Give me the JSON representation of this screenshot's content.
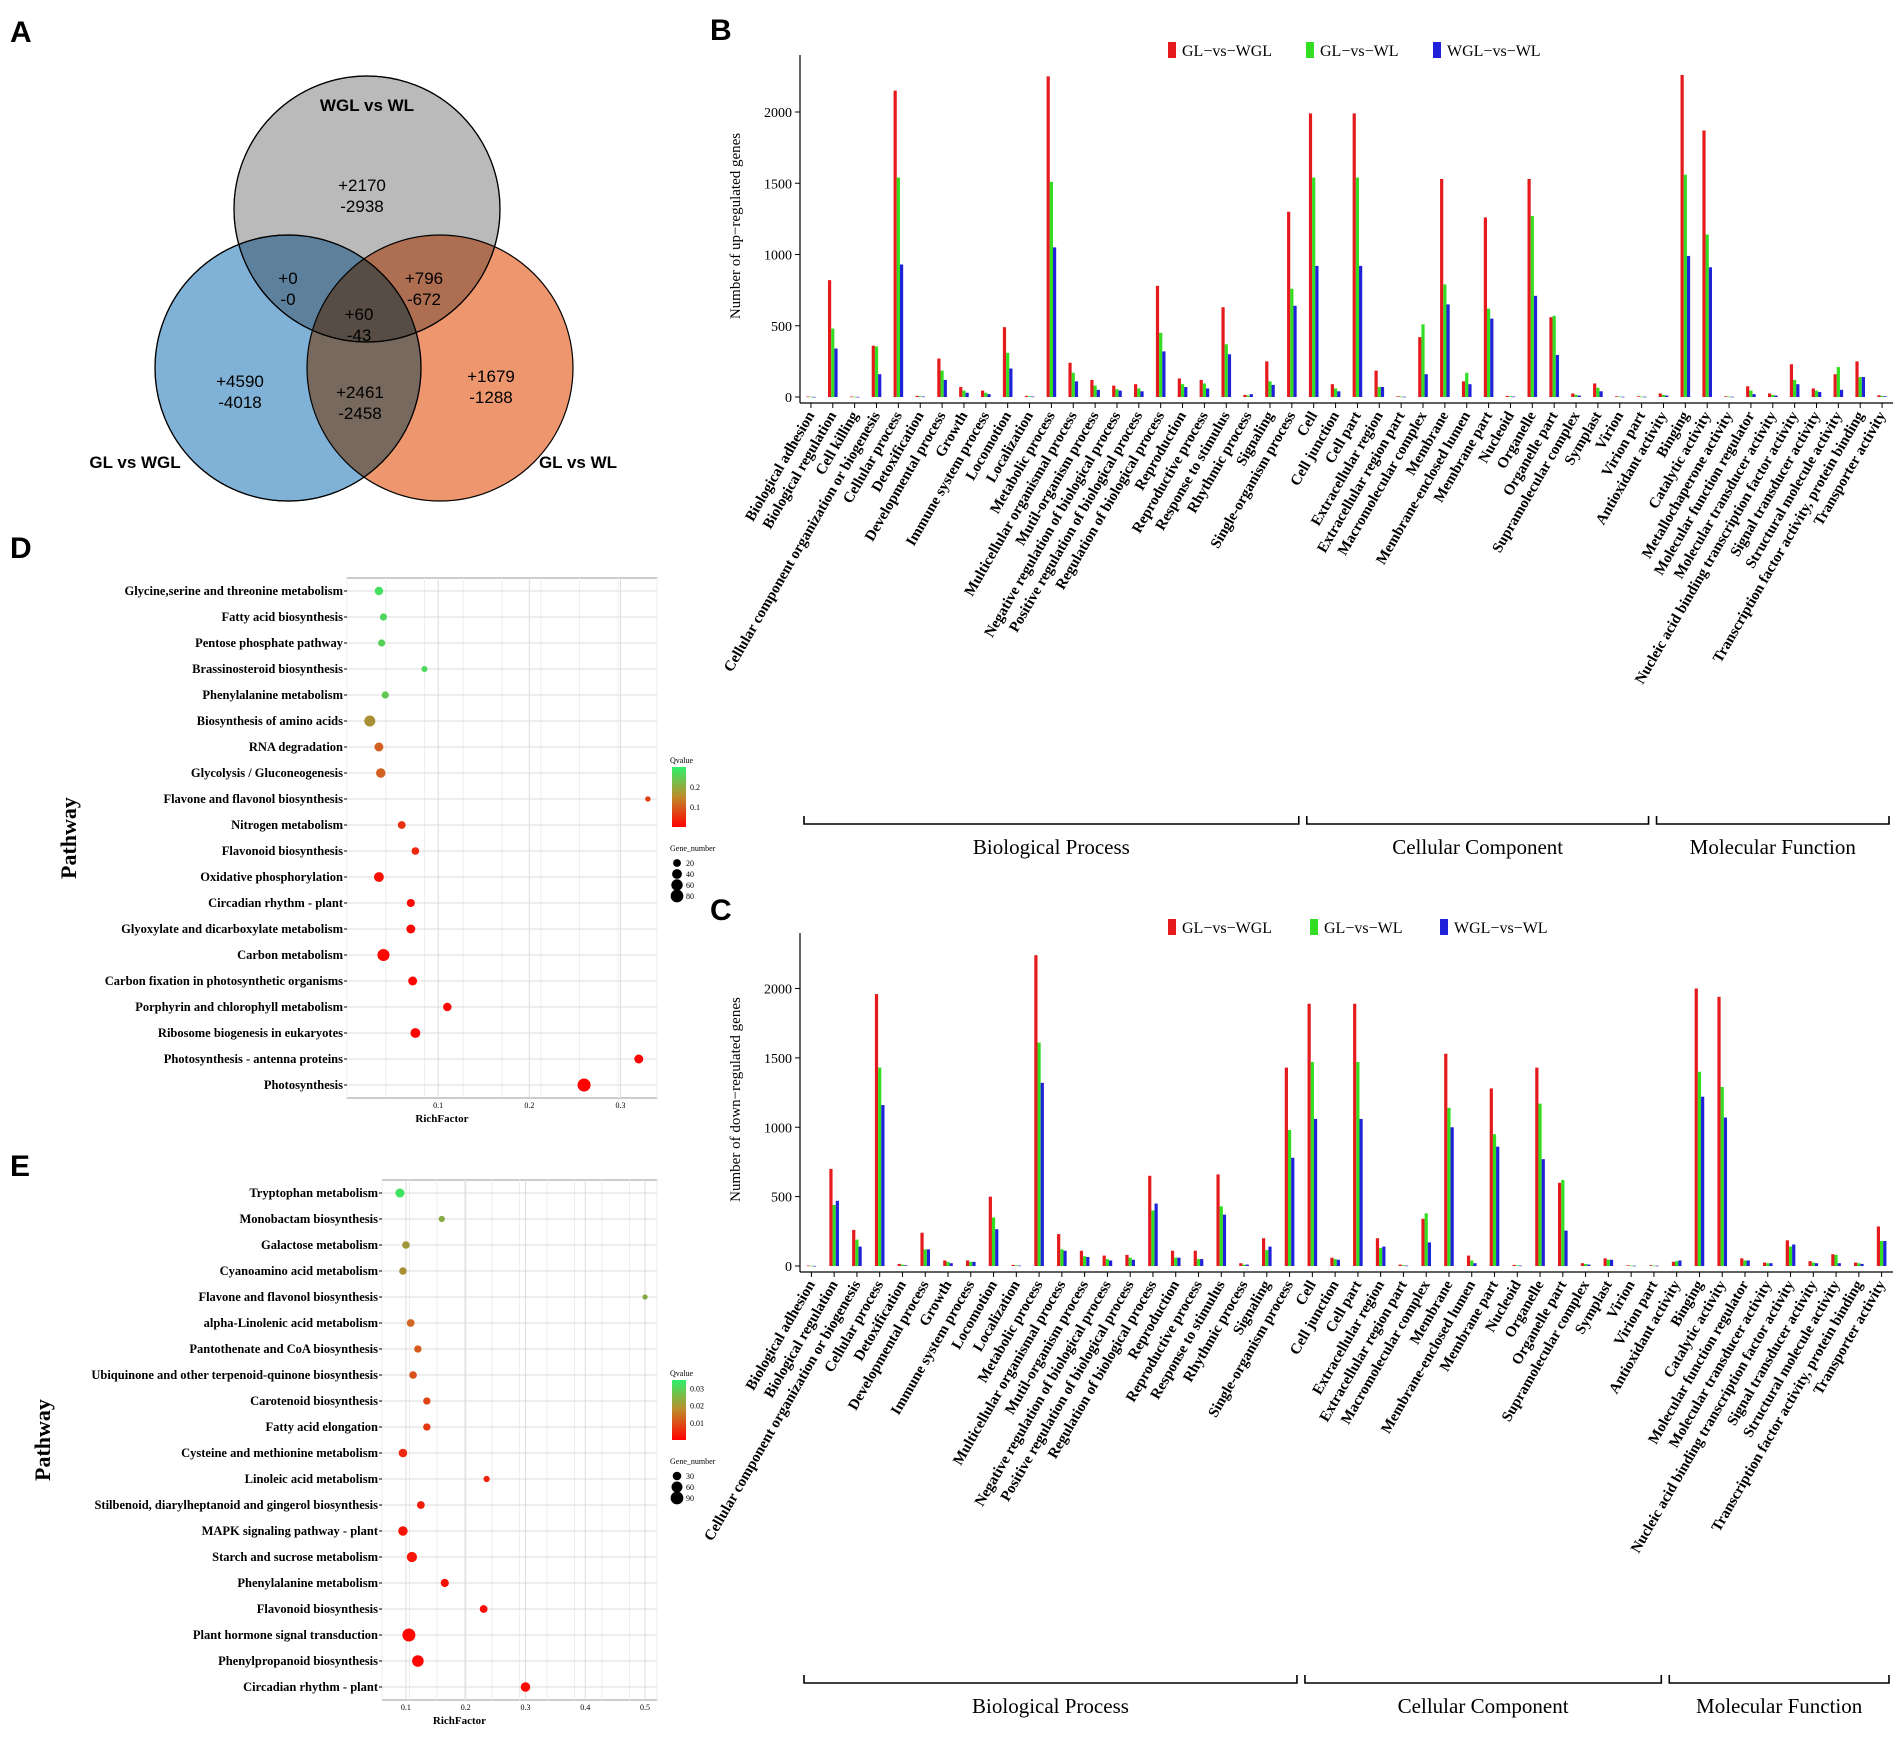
{
  "panel_labels": {
    "A": "A",
    "B": "B",
    "C": "C",
    "D": "D",
    "E": "E"
  },
  "venn": {
    "sets": {
      "top": "WGL vs WL",
      "left": "GL vs WGL",
      "right": "GL vs WL"
    },
    "regions": {
      "top_only": [
        "+2170",
        "-2938"
      ],
      "left_only": [
        "+4590",
        "-4018"
      ],
      "right_only": [
        "+1679",
        "-1288"
      ],
      "top_left": [
        "+0",
        "-0"
      ],
      "top_right": [
        "+796",
        "-672"
      ],
      "left_right": [
        "+2461",
        "-2458"
      ],
      "center": [
        "+60",
        "-43"
      ]
    },
    "colors": {
      "top": "#b3b3b3",
      "left": "#6aa3cf",
      "right": "#ec8c5f"
    }
  },
  "chart_data": [
    {
      "id": "B",
      "type": "bar",
      "ylabel": "Number of up−regulated genes",
      "ylim": [
        0,
        2400
      ],
      "yticks": [
        0,
        500,
        1000,
        1500,
        2000
      ],
      "legend": [
        "GL−vs−WGL",
        "GL−vs−WL",
        "WGL−vs−WL"
      ],
      "colors": [
        "#e41a1c",
        "#33dd22",
        "#1f22d8"
      ],
      "categories": [
        "Biological adhesion",
        "Biological regulation",
        "Cell killing",
        "Cellular component organization or biogenesis",
        "Cellular process",
        "Detoxification",
        "Developmental process",
        "Growth",
        "Immune system process",
        "Locomotion",
        "Localization",
        "Metabolic process",
        "Multicellular organismal process",
        "Mutil-organism process",
        "Negative regulation of biological process",
        "Positive regulation of biological process",
        "Regulation of biological process",
        "Reproduction",
        "Reproductive process",
        "Response to stimulus",
        "Rhythmic process",
        "Signaling",
        "Single-organism process",
        "Cell",
        "Cell junction",
        "Cell part",
        "Extracellular region",
        "Extracellular region part",
        "Macromolecular complex",
        "Membrane",
        "Membrane-enclosed lumen",
        "Membrane part",
        "Nucleoid",
        "Organelle",
        "Organelle part",
        "Supramolecular complex",
        "Symplast",
        "Virion",
        "Virion part",
        "Antioxidant activity",
        "Binging",
        "Catalytic activity",
        "Metallochaperone activity",
        "Molecular function regulator",
        "Molecular transducer activity",
        "Nucleic acid binding transcription factor activity",
        "Signal transducer activity",
        "Structural molecule activity",
        "Transcription factor activity, protein binding",
        "Transporter activity"
      ],
      "series": [
        {
          "name": "GL−vs−WGL",
          "values": [
            3,
            820,
            3,
            360,
            2150,
            8,
            270,
            70,
            45,
            490,
            8,
            2250,
            240,
            120,
            80,
            90,
            780,
            130,
            120,
            630,
            15,
            250,
            1300,
            1990,
            90,
            1990,
            185,
            5,
            420,
            1530,
            110,
            1260,
            8,
            1530,
            560,
            25,
            95,
            5,
            5,
            25,
            2260,
            1870,
            5,
            75,
            25,
            230,
            60,
            160,
            250,
            12
          ]
        },
        {
          "name": "GL−vs−WL",
          "values": [
            2,
            480,
            2,
            355,
            1540,
            5,
            185,
            45,
            30,
            310,
            5,
            1510,
            170,
            80,
            55,
            60,
            450,
            90,
            95,
            370,
            10,
            110,
            760,
            1540,
            60,
            1540,
            70,
            3,
            510,
            790,
            170,
            620,
            5,
            1270,
            570,
            15,
            65,
            3,
            3,
            15,
            1560,
            1140,
            3,
            45,
            15,
            120,
            45,
            210,
            140,
            8
          ]
        },
        {
          "name": "WGL−vs−WL",
          "values": [
            1,
            340,
            1,
            160,
            930,
            3,
            120,
            30,
            20,
            200,
            3,
            1050,
            110,
            50,
            45,
            40,
            320,
            70,
            60,
            300,
            20,
            85,
            640,
            920,
            40,
            920,
            70,
            2,
            160,
            650,
            90,
            550,
            3,
            710,
            295,
            10,
            40,
            2,
            2,
            10,
            990,
            910,
            2,
            20,
            10,
            90,
            35,
            50,
            140,
            5
          ]
        }
      ],
      "groups": [
        {
          "label": "Biological Process",
          "from": 0,
          "to": 22
        },
        {
          "label": "Cellular Component",
          "from": 23,
          "to": 38
        },
        {
          "label": "Molecular Function",
          "from": 39,
          "to": 49
        }
      ]
    },
    {
      "id": "C",
      "type": "bar",
      "ylabel": "Number of down−regulated genes",
      "ylim": [
        0,
        2400
      ],
      "yticks": [
        0,
        500,
        1000,
        1500,
        2000
      ],
      "legend": [
        "GL−vs−WGL",
        "GL−vs−WL",
        "WGL−vs−WL"
      ],
      "colors": [
        "#e41a1c",
        "#33dd22",
        "#1f22d8"
      ],
      "categories": [
        "Biological adhesion",
        "Biological regulation",
        "Cellular component organization or biogenesis",
        "Cellular process",
        "Detoxification",
        "Developmental process",
        "Growth",
        "Immune system process",
        "Locomotion",
        "Localization",
        "Metabolic process",
        "Multicellular organismal process",
        "Mutil-organism process",
        "Negative regulation of biological process",
        "Positive regulation of biological process",
        "Regulation of biological process",
        "Reproduction",
        "Reproductive process",
        "Response to stimulus",
        "Rhythmic process",
        "Signaling",
        "Single-organism process",
        "Cell",
        "Cell junction",
        "Cell part",
        "Extracellular region",
        "Extracellular region part",
        "Macromolecular complex",
        "Membrane",
        "Membrane-enclosed lumen",
        "Membrane part",
        "Nucleoid",
        "Organelle",
        "Organelle part",
        "Supramolecular complex",
        "Symplast",
        "Virion",
        "Virion part",
        "Antioxidant activity",
        "Binging",
        "Catalytic activity",
        "Molecular function regulator",
        "Molecular transducer activity",
        "Nucleic acid binding transcription factor activity",
        "Signal transducer activity",
        "Structural molecule activity",
        "Transcription factor activity, protein binding",
        "Transporter activity"
      ],
      "series": [
        {
          "name": "GL−vs−WGL",
          "values": [
            3,
            700,
            260,
            1960,
            15,
            240,
            40,
            40,
            500,
            8,
            2240,
            230,
            110,
            75,
            80,
            650,
            110,
            110,
            660,
            20,
            200,
            1430,
            1890,
            60,
            1890,
            200,
            10,
            340,
            1530,
            75,
            1280,
            8,
            1430,
            600,
            20,
            55,
            5,
            5,
            30,
            2000,
            1940,
            55,
            25,
            185,
            35,
            85,
            25,
            285
          ]
        },
        {
          "name": "GL−vs−WL",
          "values": [
            2,
            440,
            190,
            1430,
            10,
            120,
            30,
            30,
            350,
            5,
            1610,
            120,
            70,
            50,
            60,
            400,
            60,
            50,
            430,
            10,
            115,
            980,
            1470,
            50,
            1470,
            130,
            5,
            380,
            1140,
            40,
            950,
            5,
            1170,
            620,
            15,
            45,
            3,
            3,
            35,
            1400,
            1290,
            40,
            20,
            140,
            25,
            80,
            20,
            180
          ]
        },
        {
          "name": "WGL−vs−WL",
          "values": [
            1,
            470,
            140,
            1160,
            5,
            120,
            20,
            30,
            265,
            3,
            1320,
            110,
            65,
            40,
            45,
            450,
            60,
            50,
            370,
            10,
            140,
            780,
            1060,
            45,
            1060,
            140,
            3,
            170,
            1000,
            20,
            860,
            3,
            770,
            255,
            10,
            45,
            2,
            2,
            40,
            1220,
            1070,
            40,
            20,
            155,
            20,
            20,
            15,
            180
          ]
        }
      ],
      "groups": [
        {
          "label": "Biological Process",
          "from": 0,
          "to": 21
        },
        {
          "label": "Cellular Component",
          "from": 22,
          "to": 37
        },
        {
          "label": "Molecular Function",
          "from": 38,
          "to": 47
        }
      ]
    },
    {
      "id": "D",
      "type": "scatter",
      "ylabel": "Pathway",
      "xlabel": "RichFactor",
      "xlim": [
        0.0,
        0.34
      ],
      "xticks": [
        0.1,
        0.2,
        0.3
      ],
      "legend_titles": {
        "color": "Qvalue",
        "size": "Gene_number"
      },
      "color_ticks": [
        0.2,
        0.1
      ],
      "size_ticks": [
        20,
        40,
        60,
        80
      ],
      "qrange": [
        0.0,
        0.3
      ],
      "points": [
        {
          "pathway": "Glycine,serine and threonine metabolism",
          "rich": 0.035,
          "q": 0.28,
          "n": 25
        },
        {
          "pathway": "Fatty acid biosynthesis",
          "rich": 0.04,
          "q": 0.27,
          "n": 15
        },
        {
          "pathway": "Pentose phosphate pathway",
          "rich": 0.038,
          "q": 0.26,
          "n": 15
        },
        {
          "pathway": "Brassinosteroid biosynthesis",
          "rich": 0.085,
          "q": 0.27,
          "n": 8
        },
        {
          "pathway": "Phenylalanine metabolism",
          "rich": 0.042,
          "q": 0.25,
          "n": 15
        },
        {
          "pathway": "Biosynthesis of amino acids",
          "rich": 0.025,
          "q": 0.18,
          "n": 55
        },
        {
          "pathway": "RNA degradation",
          "rich": 0.035,
          "q": 0.12,
          "n": 30
        },
        {
          "pathway": "Glycolysis / Gluconeogenesis",
          "rich": 0.037,
          "q": 0.12,
          "n": 35
        },
        {
          "pathway": "Flavone and flavonol biosynthesis",
          "rich": 0.33,
          "q": 0.08,
          "n": 5
        },
        {
          "pathway": "Nitrogen metabolism",
          "rich": 0.06,
          "q": 0.06,
          "n": 20
        },
        {
          "pathway": "Flavonoid biosynthesis",
          "rich": 0.075,
          "q": 0.05,
          "n": 18
        },
        {
          "pathway": "Oxidative phosphorylation",
          "rich": 0.035,
          "q": 0.02,
          "n": 40
        },
        {
          "pathway": "Circadian rhythm - plant",
          "rich": 0.07,
          "q": 0.01,
          "n": 22
        },
        {
          "pathway": "Glyoxylate and dicarboxylate metabolism",
          "rich": 0.07,
          "q": 0.01,
          "n": 30
        },
        {
          "pathway": "Carbon metabolism",
          "rich": 0.04,
          "q": 0.01,
          "n": 70
        },
        {
          "pathway": "Carbon fixation in photosynthetic organisms",
          "rich": 0.072,
          "q": 0.005,
          "n": 30
        },
        {
          "pathway": "Porphyrin and chlorophyll metabolism",
          "rich": 0.11,
          "q": 0.005,
          "n": 25
        },
        {
          "pathway": "Ribosome biogenesis in eukaryotes",
          "rich": 0.075,
          "q": 0.005,
          "n": 40
        },
        {
          "pathway": "Photosynthesis - antenna proteins",
          "rich": 0.32,
          "q": 0.002,
          "n": 30
        },
        {
          "pathway": "Photosynthesis",
          "rich": 0.26,
          "q": 0.001,
          "n": 85
        }
      ]
    },
    {
      "id": "E",
      "type": "scatter",
      "ylabel": "Pathway",
      "xlabel": "RichFactor",
      "xlim": [
        0.06,
        0.52
      ],
      "xticks": [
        0.1,
        0.2,
        0.3,
        0.4,
        0.5
      ],
      "legend_titles": {
        "color": "Qvalue",
        "size": "Gene_number"
      },
      "color_ticks": [
        0.03,
        0.02,
        0.01
      ],
      "size_ticks": [
        30,
        60,
        90
      ],
      "qrange": [
        0.0,
        0.035
      ],
      "points": [
        {
          "pathway": "Tryptophan metabolism",
          "rich": 0.09,
          "q": 0.033,
          "n": 35
        },
        {
          "pathway": "Monobactam biosynthesis",
          "rich": 0.16,
          "q": 0.025,
          "n": 10
        },
        {
          "pathway": "Galactose metabolism",
          "rich": 0.1,
          "q": 0.022,
          "n": 20
        },
        {
          "pathway": "Cyanoamino acid metabolism",
          "rich": 0.095,
          "q": 0.021,
          "n": 20
        },
        {
          "pathway": "Flavone and flavonol biosynthesis",
          "rich": 0.5,
          "q": 0.025,
          "n": 5
        },
        {
          "pathway": "alpha-Linolenic acid metabolism",
          "rich": 0.108,
          "q": 0.015,
          "n": 22
        },
        {
          "pathway": "Pantothenate and CoA biosynthesis",
          "rich": 0.12,
          "q": 0.013,
          "n": 18
        },
        {
          "pathway": "Ubiquinone and other terpenoid-quinone biosynthesis",
          "rich": 0.112,
          "q": 0.012,
          "n": 20
        },
        {
          "pathway": "Carotenoid biosynthesis",
          "rich": 0.135,
          "q": 0.01,
          "n": 18
        },
        {
          "pathway": "Fatty acid elongation",
          "rich": 0.135,
          "q": 0.008,
          "n": 18
        },
        {
          "pathway": "Cysteine and methionine metabolism",
          "rich": 0.095,
          "q": 0.006,
          "n": 30
        },
        {
          "pathway": "Linoleic acid metabolism",
          "rich": 0.235,
          "q": 0.005,
          "n": 10
        },
        {
          "pathway": "Stilbenoid, diarylheptanoid and gingerol biosynthesis",
          "rich": 0.125,
          "q": 0.004,
          "n": 22
        },
        {
          "pathway": "MAPK signaling pathway - plant",
          "rich": 0.095,
          "q": 0.003,
          "n": 40
        },
        {
          "pathway": "Starch and sucrose metabolism",
          "rich": 0.11,
          "q": 0.003,
          "n": 50
        },
        {
          "pathway": "Phenylalanine metabolism",
          "rich": 0.165,
          "q": 0.002,
          "n": 25
        },
        {
          "pathway": "Flavonoid biosynthesis",
          "rich": 0.23,
          "q": 0.002,
          "n": 22
        },
        {
          "pathway": "Plant hormone signal transduction",
          "rich": 0.105,
          "q": 0.001,
          "n": 95
        },
        {
          "pathway": "Phenylpropanoid biosynthesis",
          "rich": 0.12,
          "q": 0.001,
          "n": 70
        },
        {
          "pathway": "Circadian rhythm - plant",
          "rich": 0.3,
          "q": 0.001,
          "n": 40
        }
      ]
    }
  ]
}
